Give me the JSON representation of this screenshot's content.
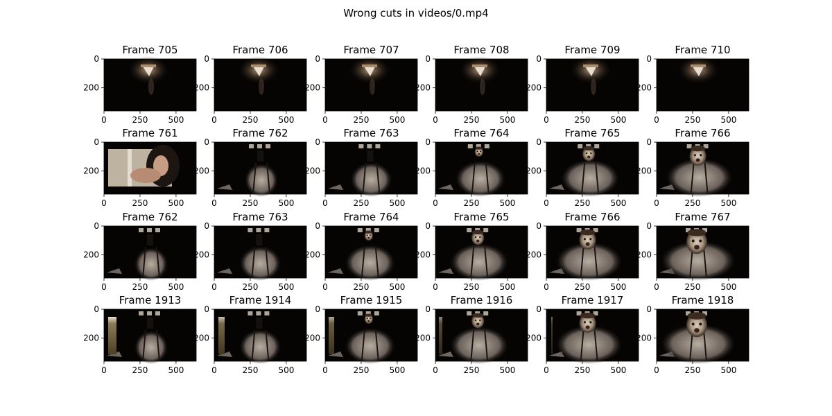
{
  "chart_data": {
    "type": "image-grid",
    "title": "Wrong cuts in videos/0.mp4",
    "x_ticks": [
      "0",
      "250",
      "500"
    ],
    "y_ticks": [
      "0",
      "200"
    ],
    "rows": [
      {
        "frames": [
          "Frame 705",
          "Frame 706",
          "Frame 707",
          "Frame 708",
          "Frame 709",
          "Frame 710"
        ],
        "kind": "dark-lamp"
      },
      {
        "frames": [
          "Frame 761",
          "Frame 762",
          "Frame 763",
          "Frame 764",
          "Frame 765",
          "Frame 766"
        ],
        "kind": "cut-person"
      },
      {
        "frames": [
          "Frame 762",
          "Frame 763",
          "Frame 764",
          "Frame 765",
          "Frame 766",
          "Frame 767"
        ],
        "kind": "person"
      },
      {
        "frames": [
          "Frame 1913",
          "Frame 1914",
          "Frame 1915",
          "Frame 1916",
          "Frame 1917",
          "Frame 1918"
        ],
        "kind": "fade"
      }
    ]
  }
}
